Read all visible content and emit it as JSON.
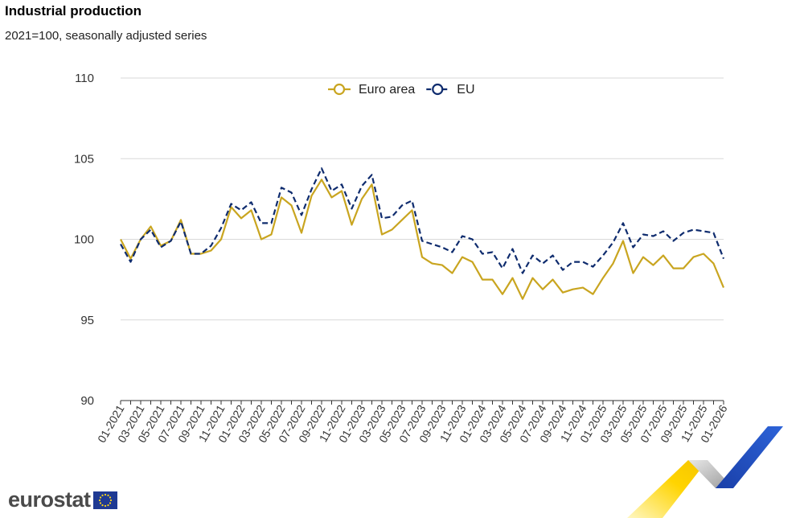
{
  "header": {
    "title": "Industrial production",
    "subtitle": "2021=100, seasonally adjusted series"
  },
  "branding": {
    "logo_text": "eurostat"
  },
  "colors": {
    "euro_area": "#c9a520",
    "eu": "#0f2c6e",
    "grid": "#d9d9d9"
  },
  "chart_data": {
    "type": "line",
    "title": "Industrial production",
    "subtitle": "2021=100, seasonally adjusted series",
    "xlabel": "",
    "ylabel": "",
    "ylim": [
      90,
      110
    ],
    "yticks": [
      90,
      95,
      100,
      105,
      110
    ],
    "grid": true,
    "legend_position": "top-center",
    "x": [
      "01-2021",
      "02-2021",
      "03-2021",
      "04-2021",
      "05-2021",
      "06-2021",
      "07-2021",
      "08-2021",
      "09-2021",
      "10-2021",
      "11-2021",
      "12-2021",
      "01-2022",
      "02-2022",
      "03-2022",
      "04-2022",
      "05-2022",
      "06-2022",
      "07-2022",
      "08-2022",
      "09-2022",
      "10-2022",
      "11-2022",
      "12-2022",
      "01-2023",
      "02-2023",
      "03-2023",
      "04-2023",
      "05-2023",
      "06-2023",
      "07-2023",
      "08-2023",
      "09-2023",
      "10-2023",
      "11-2023",
      "12-2023",
      "01-2024",
      "02-2024",
      "03-2024",
      "04-2024",
      "05-2024",
      "06-2024",
      "07-2024",
      "08-2024",
      "09-2024",
      "10-2024",
      "11-2024",
      "12-2024",
      "01-2025",
      "02-2025",
      "03-2025",
      "04-2025",
      "05-2025",
      "06-2025",
      "07-2025",
      "08-2025",
      "09-2025",
      "10-2025",
      "11-2025",
      "12-2025",
      "01-2026"
    ],
    "x_tick_labels": [
      "01-2021",
      "03-2021",
      "05-2021",
      "07-2021",
      "09-2021",
      "11-2021",
      "01-2022",
      "03-2022",
      "05-2022",
      "07-2022",
      "09-2022",
      "11-2022",
      "01-2023",
      "03-2023",
      "05-2023",
      "07-2023",
      "09-2023",
      "11-2023",
      "01-2024",
      "03-2024",
      "05-2024",
      "07-2024",
      "09-2024",
      "11-2024",
      "01-2025",
      "03-2025",
      "05-2025",
      "07-2025",
      "09-2025",
      "11-2025",
      "01-2026"
    ],
    "series": [
      {
        "name": "Euro area",
        "style": "solid",
        "values": [
          100.0,
          98.8,
          100.0,
          100.8,
          99.6,
          99.9,
          101.2,
          99.1,
          99.1,
          99.3,
          100.0,
          102.0,
          101.3,
          101.8,
          100.0,
          100.3,
          102.6,
          102.1,
          100.4,
          102.7,
          103.7,
          102.6,
          103.0,
          100.9,
          102.5,
          103.4,
          100.3,
          100.6,
          101.2,
          101.8,
          98.9,
          98.5,
          98.4,
          97.9,
          98.9,
          98.6,
          97.5,
          97.5,
          96.6,
          97.6,
          96.3,
          97.6,
          96.9,
          97.5,
          96.7,
          96.9,
          97.0,
          96.6,
          97.6,
          98.5,
          99.9,
          97.9,
          98.9,
          98.4,
          99.0,
          98.2,
          98.2,
          98.9,
          99.1,
          98.5,
          97.0
        ]
      },
      {
        "name": "EU",
        "style": "dashed",
        "values": [
          99.7,
          98.6,
          100.0,
          100.6,
          99.5,
          99.9,
          101.1,
          99.1,
          99.1,
          99.6,
          100.7,
          102.2,
          101.8,
          102.3,
          101.0,
          101.0,
          103.2,
          102.9,
          101.5,
          103.1,
          104.4,
          103.0,
          103.4,
          101.9,
          103.3,
          104.0,
          101.3,
          101.4,
          102.1,
          102.4,
          99.9,
          99.7,
          99.5,
          99.2,
          100.2,
          100.0,
          99.1,
          99.2,
          98.2,
          99.4,
          97.9,
          99.0,
          98.5,
          99.0,
          98.1,
          98.6,
          98.6,
          98.3,
          99.0,
          99.8,
          101.0,
          99.5,
          100.3,
          100.2,
          100.5,
          99.9,
          100.4,
          100.6,
          100.5,
          100.4,
          98.8
        ]
      }
    ]
  }
}
